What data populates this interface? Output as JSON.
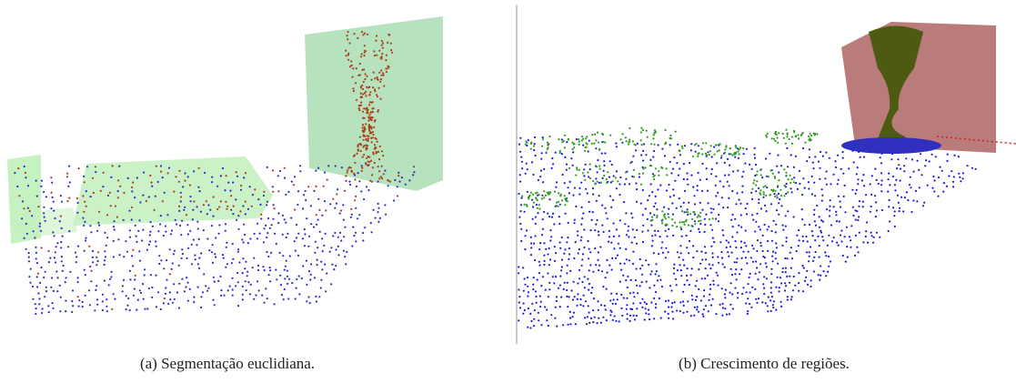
{
  "figure": {
    "subfigures": [
      {
        "label": "(a)",
        "caption": "Segmentação euclidiana."
      },
      {
        "label": "(b)",
        "caption": "Crescimento de regiões."
      }
    ]
  }
}
